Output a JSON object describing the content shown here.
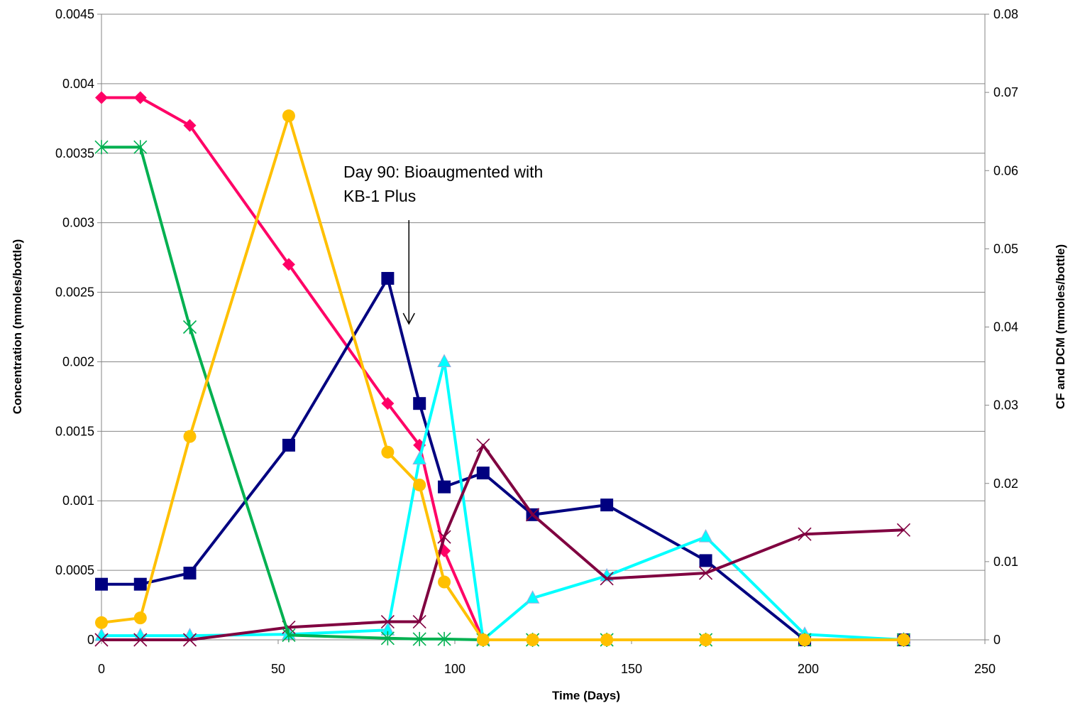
{
  "chart_data": {
    "type": "line",
    "xlabel": "Time (Days)",
    "ylabel_left": "Concentration (mmoles/bottle)",
    "ylabel_right": "CF and DCM (mmoles/bottle)",
    "xlim": [
      0,
      250
    ],
    "ylim_left": [
      0,
      0.0045
    ],
    "ylim_right": [
      0,
      0.08
    ],
    "x_ticks": [
      "0",
      "50",
      "100",
      "150",
      "200",
      "250"
    ],
    "y_left_ticks": [
      "0",
      "0.0005",
      "0.001",
      "0.0015",
      "0.002",
      "0.0025",
      "0.003",
      "0.0035",
      "0.004",
      "0.0045"
    ],
    "y_right_ticks": [
      "0",
      "0.01",
      "0.02",
      "0.03",
      "0.04",
      "0.05",
      "0.06",
      "0.07",
      "0.08"
    ],
    "grid": "horizontal",
    "annotation": {
      "lines": [
        "Day 90: Bioaugmented with",
        "KB-1 Plus"
      ],
      "arrow_day": 87
    },
    "series": [
      {
        "axis": "left",
        "color": "#FF0066",
        "marker": "diamond",
        "x": [
          0,
          11,
          25,
          53,
          81,
          90,
          97,
          108,
          122,
          143,
          171,
          199,
          227
        ],
        "y": [
          0.0039,
          0.0039,
          0.0037,
          0.0027,
          0.0017,
          0.0014,
          0.00064,
          0,
          0,
          0,
          0,
          0,
          0
        ]
      },
      {
        "axis": "left",
        "color": "#000080",
        "marker": "square",
        "x": [
          0,
          11,
          25,
          53,
          81,
          90,
          97,
          108,
          122,
          143,
          171,
          199,
          227
        ],
        "y": [
          0.0004,
          0.0004,
          0.00048,
          0.0014,
          0.0026,
          0.0017,
          0.0011,
          0.0012,
          0.0009,
          0.00097,
          0.00057,
          0,
          0
        ]
      },
      {
        "axis": "left",
        "color": "#00FFFF",
        "marker": "triangle",
        "x": [
          0,
          11,
          25,
          53,
          81,
          90,
          97,
          108,
          122,
          143,
          171,
          199,
          227
        ],
        "y": [
          3e-05,
          3e-05,
          3e-05,
          4e-05,
          7e-05,
          0.0013,
          0.002,
          0,
          0.0003,
          0.00046,
          0.00074,
          4e-05,
          0
        ]
      },
      {
        "axis": "left",
        "color": "#800040",
        "marker": "x",
        "x": [
          0,
          11,
          25,
          53,
          81,
          90,
          97,
          108,
          122,
          143,
          171,
          199,
          227
        ],
        "y": [
          0,
          0,
          0,
          9e-05,
          0.00013,
          0.00013,
          0.00074,
          0.0014,
          0.0009,
          0.00044,
          0.00048,
          0.00076,
          0.00079
        ]
      },
      {
        "axis": "right",
        "color": "#00B050",
        "marker": "star",
        "x": [
          0,
          11,
          25,
          53,
          81,
          90,
          97,
          108,
          122,
          143,
          171,
          199,
          227
        ],
        "y": [
          0.063,
          0.063,
          0.04,
          0.0006,
          0.0002,
          0.0001,
          0.0001,
          0,
          0,
          0,
          0,
          0,
          0
        ]
      },
      {
        "axis": "right",
        "color": "#FFC000",
        "marker": "circle",
        "x": [
          0,
          11,
          25,
          53,
          81,
          90,
          97,
          108,
          122,
          143,
          171,
          199,
          227
        ],
        "y": [
          0.0022,
          0.0028,
          0.026,
          0.067,
          0.024,
          0.0198,
          0.0074,
          0,
          0,
          0,
          0,
          0,
          0
        ]
      }
    ]
  }
}
